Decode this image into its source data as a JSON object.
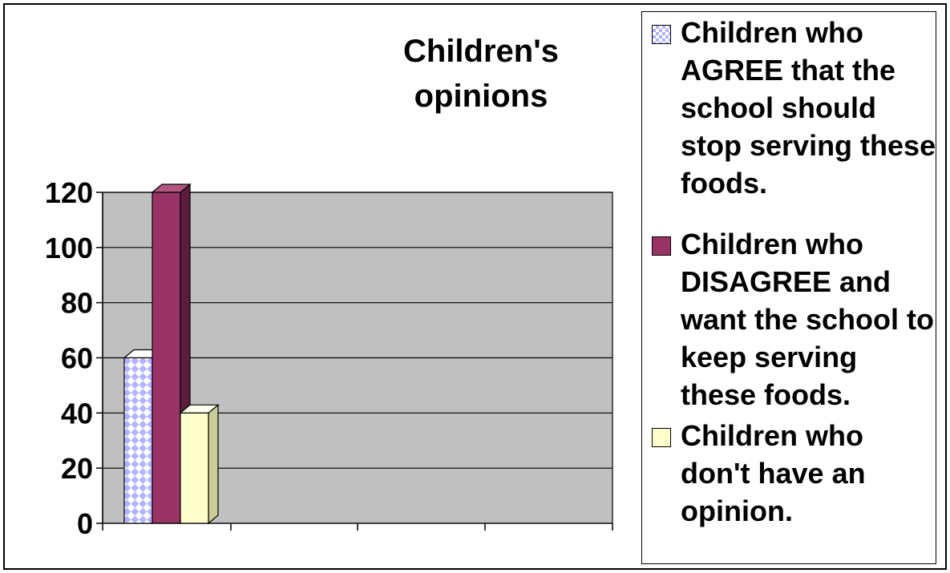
{
  "chart_data": {
    "type": "bar",
    "title": "Children's\nopinions",
    "xlabel": "",
    "ylabel": "",
    "ylim": [
      0,
      120
    ],
    "yticks": [
      0,
      20,
      40,
      60,
      80,
      100,
      120
    ],
    "categories": [
      ""
    ],
    "series": [
      {
        "name": "Children who AGREE that the school should stop serving these foods.",
        "values": [
          60
        ],
        "color": "#b3b3ff",
        "pattern": "checker"
      },
      {
        "name": "Children who DISAGREE and want the school to keep serving these foods.",
        "values": [
          120
        ],
        "color": "#993366"
      },
      {
        "name": "Children who don't have an opinion.",
        "values": [
          40
        ],
        "color": "#ffffcc"
      }
    ],
    "grid": true,
    "plot_background": "#c0c0c0",
    "legend": "right",
    "style": "3d-bar"
  }
}
